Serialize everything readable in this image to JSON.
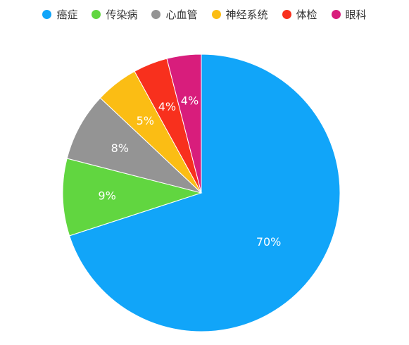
{
  "chart_data": {
    "type": "pie",
    "title": "",
    "legend_position": "top",
    "categories": [
      "癌症",
      "传染病",
      "心血管",
      "神经系统",
      "体检",
      "眼科"
    ],
    "values": [
      70,
      9,
      8,
      5,
      4,
      4
    ],
    "labels": [
      "70%",
      "9%",
      "8%",
      "5%",
      "4%",
      "4%"
    ],
    "colors": [
      "#11a5f9",
      "#61d640",
      "#949494",
      "#fbbd14",
      "#f8301d",
      "#d81d7c"
    ]
  }
}
